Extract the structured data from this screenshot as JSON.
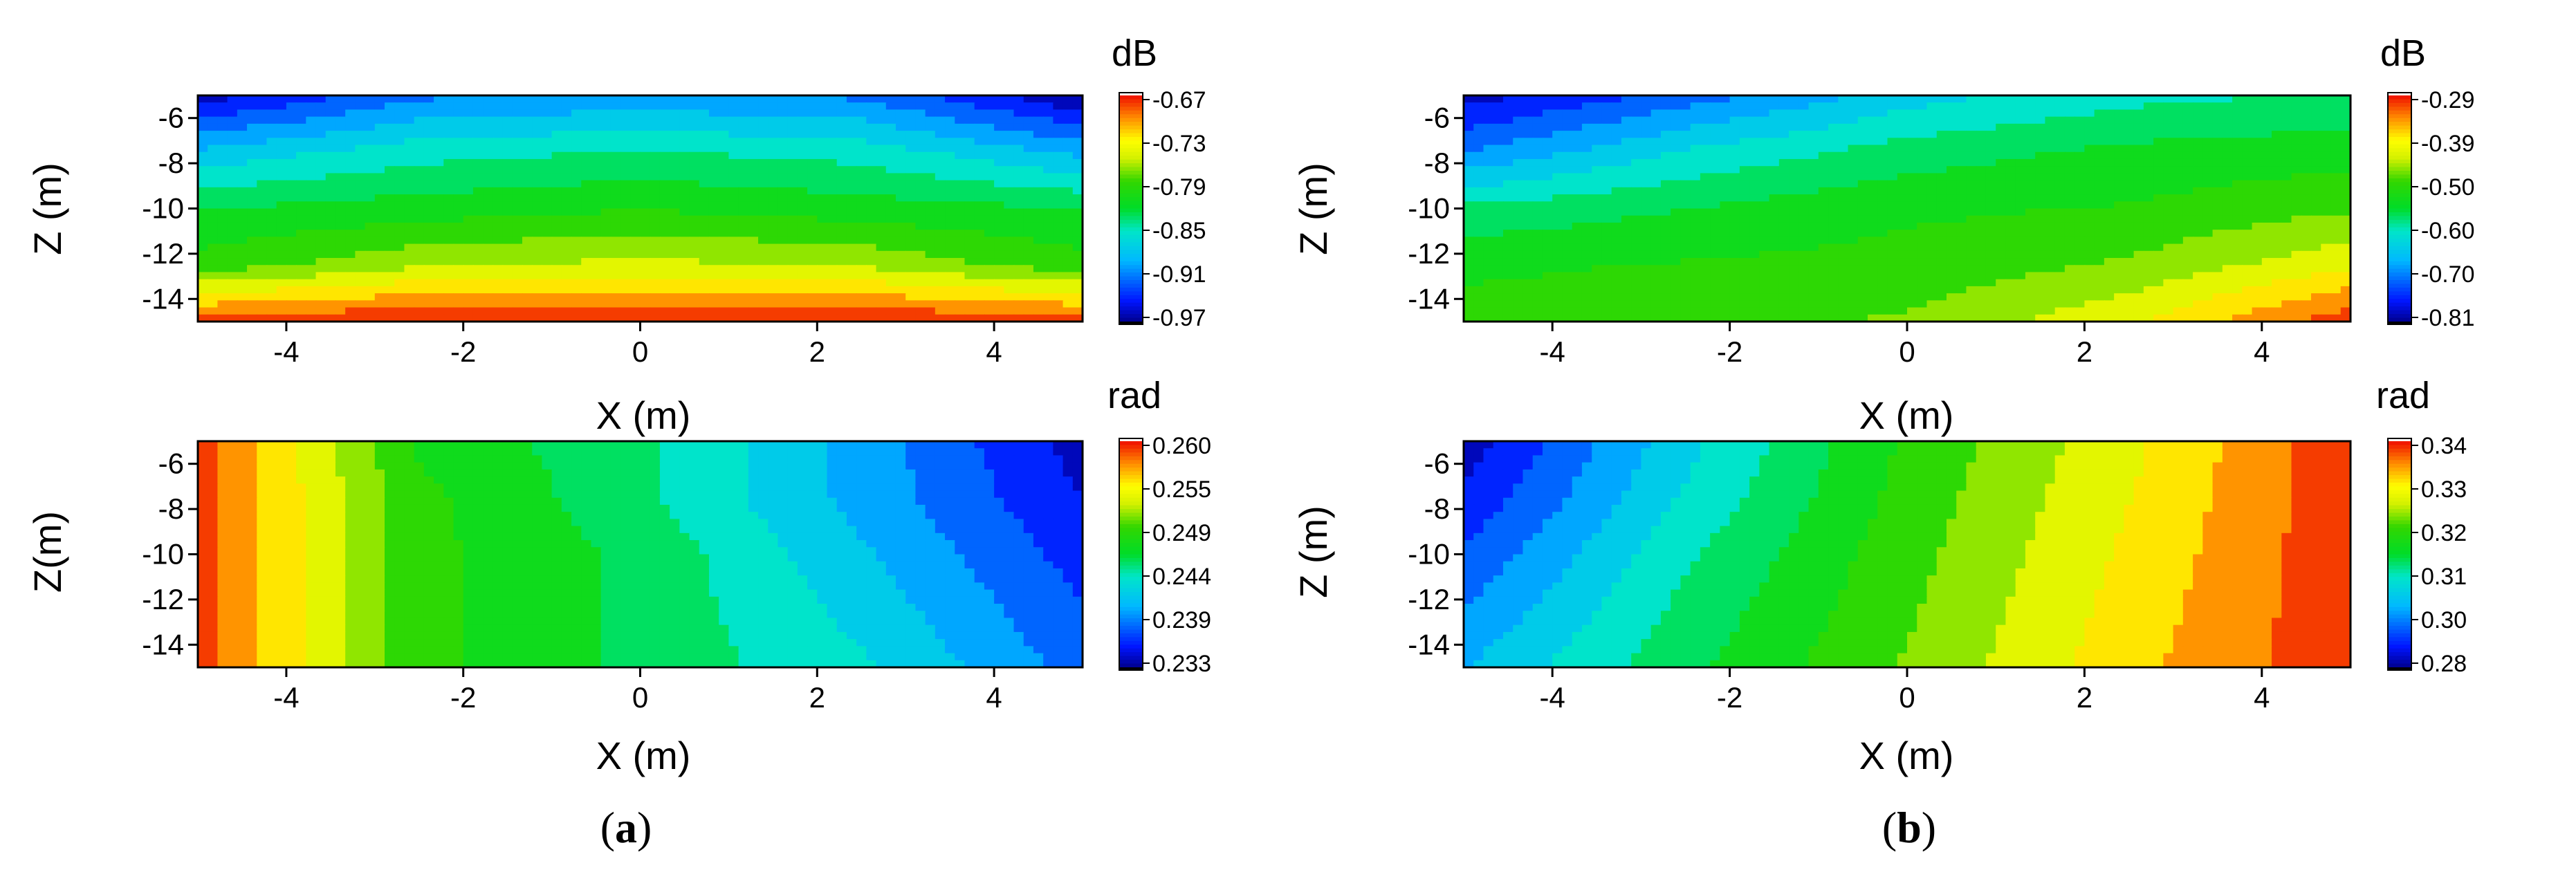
{
  "figure": {
    "panel_labels": [
      {
        "open": "(",
        "letter": "a",
        "close": ")"
      },
      {
        "open": "(",
        "letter": "b",
        "close": ")"
      }
    ]
  },
  "chart_data": [
    {
      "type": "heatmap",
      "panel": "a",
      "field": "amplitude",
      "xlabel": "X (m)",
      "ylabel": "Z (m)",
      "colorbar_title": "dB",
      "xlim": [
        -5,
        5
      ],
      "ylim": [
        -15,
        -5
      ],
      "xticks": [
        -4,
        -2,
        0,
        2,
        4
      ],
      "yticks": [
        -6,
        -8,
        -10,
        -12,
        -14
      ],
      "xtick_labels": [
        "-4",
        "-2",
        "0",
        "2",
        "4"
      ],
      "ytick_labels": [
        "-6",
        "-8",
        "-10",
        "-12",
        "-14"
      ],
      "colorbar_ticks": [
        "-0.67",
        "-0.73",
        "-0.79",
        "-0.85",
        "-0.91",
        "-0.97"
      ],
      "colorbar_range": [
        -0.97,
        -0.67
      ],
      "x": [
        -5,
        -2.5,
        0,
        2.5,
        5
      ],
      "z": [
        -5,
        -7.5,
        -10,
        -12.5,
        -15
      ],
      "values": [
        [
          -0.96,
          -0.91,
          -0.9,
          -0.91,
          -0.97
        ],
        [
          -0.88,
          -0.85,
          -0.84,
          -0.85,
          -0.89
        ],
        [
          -0.82,
          -0.81,
          -0.8,
          -0.81,
          -0.82
        ],
        [
          -0.79,
          -0.76,
          -0.75,
          -0.76,
          -0.79
        ],
        [
          -0.68,
          -0.67,
          -0.67,
          -0.67,
          -0.68
        ]
      ]
    },
    {
      "type": "heatmap",
      "panel": "a",
      "field": "phase",
      "xlabel": "X (m)",
      "ylabel": "Z(m)",
      "colorbar_title": "rad",
      "xlim": [
        -5,
        5
      ],
      "ylim": [
        -15,
        -5
      ],
      "xticks": [
        -4,
        -2,
        0,
        2,
        4
      ],
      "yticks": [
        -6,
        -8,
        -10,
        -12,
        -14
      ],
      "xtick_labels": [
        "-4",
        "-2",
        "0",
        "2",
        "4"
      ],
      "ytick_labels": [
        "-6",
        "-8",
        "-10",
        "-12",
        "-14"
      ],
      "colorbar_ticks": [
        "0.260",
        "0.255",
        "0.249",
        "0.244",
        "0.239",
        "0.233"
      ],
      "colorbar_range": [
        0.233,
        0.26
      ],
      "x": [
        -5,
        -2.5,
        0,
        2.5,
        5
      ],
      "z": [
        -5,
        -7.5,
        -10,
        -12.5,
        -15
      ],
      "values": [
        [
          0.259,
          0.248,
          0.245,
          0.24,
          0.234
        ],
        [
          0.259,
          0.249,
          0.245,
          0.24,
          0.235
        ],
        [
          0.259,
          0.249,
          0.246,
          0.241,
          0.236
        ],
        [
          0.259,
          0.249,
          0.246,
          0.242,
          0.237
        ],
        [
          0.259,
          0.249,
          0.246,
          0.243,
          0.238
        ]
      ]
    },
    {
      "type": "heatmap",
      "panel": "b",
      "field": "amplitude",
      "xlabel": "X (m)",
      "ylabel": "Z (m)",
      "colorbar_title": "dB",
      "xlim": [
        -5,
        5
      ],
      "ylim": [
        -15,
        -5
      ],
      "xticks": [
        -4,
        -2,
        0,
        2,
        4
      ],
      "yticks": [
        -6,
        -8,
        -10,
        -12,
        -14
      ],
      "xtick_labels": [
        "-4",
        "-2",
        "0",
        "2",
        "4"
      ],
      "ytick_labels": [
        "-6",
        "-8",
        "-10",
        "-12",
        "-14"
      ],
      "colorbar_ticks": [
        "-0.29",
        "-0.39",
        "-0.50",
        "-0.60",
        "-0.70",
        "-0.81"
      ],
      "colorbar_range": [
        -0.81,
        -0.29
      ],
      "x": [
        -5,
        -2.5,
        0,
        2.5,
        5
      ],
      "z": [
        -5,
        -7.5,
        -10,
        -12.5,
        -15
      ],
      "values": [
        [
          -0.79,
          -0.72,
          -0.64,
          -0.6,
          -0.58
        ],
        [
          -0.7,
          -0.62,
          -0.57,
          -0.54,
          -0.53
        ],
        [
          -0.58,
          -0.55,
          -0.52,
          -0.51,
          -0.48
        ],
        [
          -0.52,
          -0.51,
          -0.5,
          -0.47,
          -0.41
        ],
        [
          -0.5,
          -0.49,
          -0.47,
          -0.41,
          -0.3
        ]
      ]
    },
    {
      "type": "heatmap",
      "panel": "b",
      "field": "phase",
      "xlabel": "X (m)",
      "ylabel": "Z (m)",
      "colorbar_title": "rad",
      "xlim": [
        -5,
        5
      ],
      "ylim": [
        -15,
        -5
      ],
      "xticks": [
        -4,
        -2,
        0,
        2,
        4
      ],
      "yticks": [
        -6,
        -8,
        -10,
        -12,
        -14
      ],
      "xtick_labels": [
        "-4",
        "-2",
        "0",
        "2",
        "4"
      ],
      "ytick_labels": [
        "-6",
        "-8",
        "-10",
        "-12",
        "-14"
      ],
      "colorbar_ticks": [
        "0.34",
        "0.33",
        "0.32",
        "0.31",
        "0.30",
        "0.28"
      ],
      "colorbar_range": [
        0.28,
        0.34
      ],
      "x": [
        -5,
        -2.5,
        0,
        2.5,
        5
      ],
      "z": [
        -5,
        -7.5,
        -10,
        -12.5,
        -15
      ],
      "values": [
        [
          0.282,
          0.3,
          0.315,
          0.326,
          0.339
        ],
        [
          0.285,
          0.302,
          0.316,
          0.327,
          0.339
        ],
        [
          0.289,
          0.305,
          0.317,
          0.328,
          0.339
        ],
        [
          0.293,
          0.307,
          0.318,
          0.329,
          0.339
        ],
        [
          0.297,
          0.309,
          0.319,
          0.33,
          0.339
        ]
      ]
    }
  ]
}
